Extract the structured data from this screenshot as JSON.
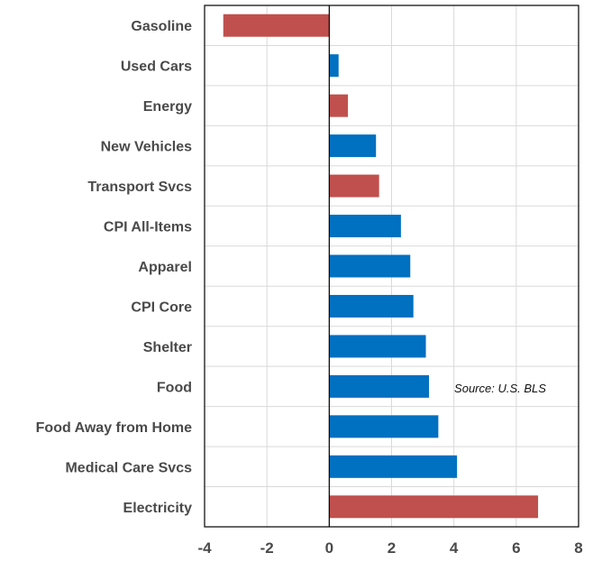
{
  "chart_data": {
    "type": "bar",
    "orientation": "horizontal",
    "categories": [
      "Gasoline",
      "Used Cars",
      "Energy",
      "New Vehicles",
      "Transport Svcs",
      "CPI All-Items",
      "Apparel",
      "CPI Core",
      "Shelter",
      "Food",
      "Food Away from Home",
      "Medical Care Svcs",
      "Electricity"
    ],
    "values": [
      -3.4,
      0.3,
      0.6,
      1.5,
      1.6,
      2.3,
      2.6,
      2.7,
      3.1,
      3.2,
      3.5,
      4.1,
      6.7
    ],
    "bar_colors": [
      "#c0504d",
      "#0070c0",
      "#c0504d",
      "#0070c0",
      "#c0504d",
      "#0070c0",
      "#0070c0",
      "#0070c0",
      "#0070c0",
      "#0070c0",
      "#0070c0",
      "#0070c0",
      "#c0504d"
    ],
    "title": "",
    "xlabel": "",
    "ylabel": "",
    "xlim": [
      -4,
      8
    ],
    "xticks": [
      -4,
      -2,
      0,
      2,
      4,
      6,
      8
    ],
    "xtick_labels": [
      "-4",
      "-2",
      "0",
      "2",
      "4",
      "6",
      "8"
    ],
    "grid": true,
    "legend": "none",
    "annotation": "Source: U.S. BLS",
    "colors": {
      "blue": "#0070c0",
      "red": "#c0504d",
      "grid": "#d9d9d9",
      "frame": "#000000"
    }
  }
}
